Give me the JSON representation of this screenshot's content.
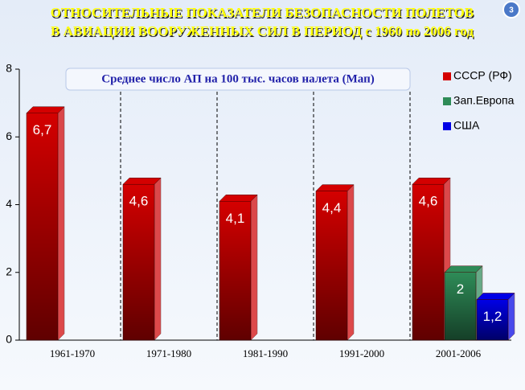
{
  "chart_data": {
    "type": "bar",
    "title": [
      "ОТНОСИТЕЛЬНЫЕ  ПОКАЗАТЕЛИ  БЕЗОПАСНОСТИ  ПОЛЕТОВ",
      "В  АВИАЦИИ  ВООРУЖЕННЫХ  СИЛ  В  ПЕРИОД с 1960 по 2006 год"
    ],
    "subtitle": "Среднее число АП на 100 тыс. часов налета (Мап)",
    "slide_number": "3",
    "categories": [
      "1961-1970",
      "1971-1980",
      "1981-1990",
      "1991-2000",
      "2001-2006"
    ],
    "series": [
      {
        "name": "СССР (РФ)",
        "color": "#d40000",
        "values": [
          6.7,
          4.6,
          4.1,
          4.4,
          4.6
        ],
        "value_labels": [
          "6,7",
          "4,6",
          "4,1",
          "4,4",
          "4,6"
        ]
      },
      {
        "name": "Зап.Европа",
        "color": "#2e8b57",
        "values": [
          null,
          null,
          null,
          null,
          2
        ],
        "value_labels": [
          null,
          null,
          null,
          null,
          "2"
        ]
      },
      {
        "name": "США",
        "color": "#0000e6",
        "values": [
          null,
          null,
          null,
          null,
          1.2
        ],
        "value_labels": [
          null,
          null,
          null,
          null,
          "1,2"
        ]
      }
    ],
    "ylim": [
      0,
      8
    ],
    "yticks": [
      0,
      2,
      4,
      6,
      8
    ],
    "legend": "right",
    "category_separators": "dashed"
  }
}
